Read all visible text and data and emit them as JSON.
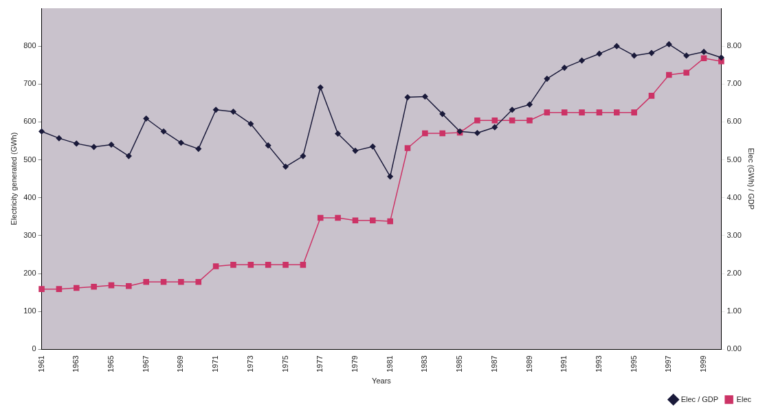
{
  "chart_data": {
    "type": "line",
    "xlabel": "Years",
    "ylabel": "Electricity generated (GWh)",
    "y2label": "Elec (GWh) / GDP",
    "categories": [
      "1961",
      null,
      "1963",
      null,
      "1965",
      null,
      "1967",
      null,
      "1969",
      null,
      "1971",
      null,
      "1973",
      null,
      "1975",
      null,
      "1977",
      null,
      "1979",
      null,
      "1981",
      null,
      "1983",
      null,
      "1985",
      null,
      "1987",
      null,
      "1989",
      null,
      "1991",
      null,
      "1993",
      null,
      "1995",
      null,
      "1997",
      null,
      "1999",
      null
    ],
    "series": [
      {
        "name": "Elec",
        "color": "#cc3366",
        "marker": "square",
        "values": [
          159,
          159,
          162,
          165,
          169,
          167,
          178,
          178,
          178,
          178,
          219,
          223,
          223,
          223,
          223,
          223,
          347,
          347,
          340,
          340,
          338,
          531,
          570,
          570,
          572,
          604,
          604,
          604,
          604,
          625,
          625,
          625,
          625,
          625,
          625,
          669,
          724,
          730,
          768,
          760
        ]
      },
      {
        "name": "Elec / GDP",
        "color": "#1a1a3a",
        "marker": "diamond",
        "axis": "y2",
        "values": [
          5.75,
          5.57,
          5.43,
          5.34,
          5.4,
          5.1,
          6.09,
          5.75,
          5.45,
          5.29,
          6.32,
          6.27,
          5.95,
          5.38,
          4.82,
          5.1,
          6.91,
          5.69,
          5.24,
          5.35,
          4.56,
          6.65,
          6.67,
          6.21,
          5.75,
          5.71,
          5.86,
          6.32,
          6.46,
          7.14,
          7.43,
          7.62,
          7.8,
          8.0,
          7.75,
          7.82,
          8.05,
          7.75,
          7.85,
          7.7
        ]
      }
    ],
    "ylim": [
      0,
      900
    ],
    "yticks": [
      0,
      100,
      200,
      300,
      400,
      500,
      600,
      700,
      800
    ],
    "y2lim": [
      0,
      9
    ],
    "y2ticks": [
      {
        "value": 0,
        "label": "0.00"
      },
      {
        "value": 1,
        "label": "1.00"
      },
      {
        "value": 2,
        "label": "2.00"
      },
      {
        "value": 3,
        "label": "3.00"
      },
      {
        "value": 4,
        "label": "4.00"
      },
      {
        "value": 5,
        "label": "5.00"
      },
      {
        "value": 6,
        "label": "6.00"
      },
      {
        "value": 7,
        "label": "7.00"
      },
      {
        "value": 8,
        "label": "8.00"
      }
    ],
    "grid": false,
    "legend": "bottom right",
    "line_style": "solid"
  }
}
